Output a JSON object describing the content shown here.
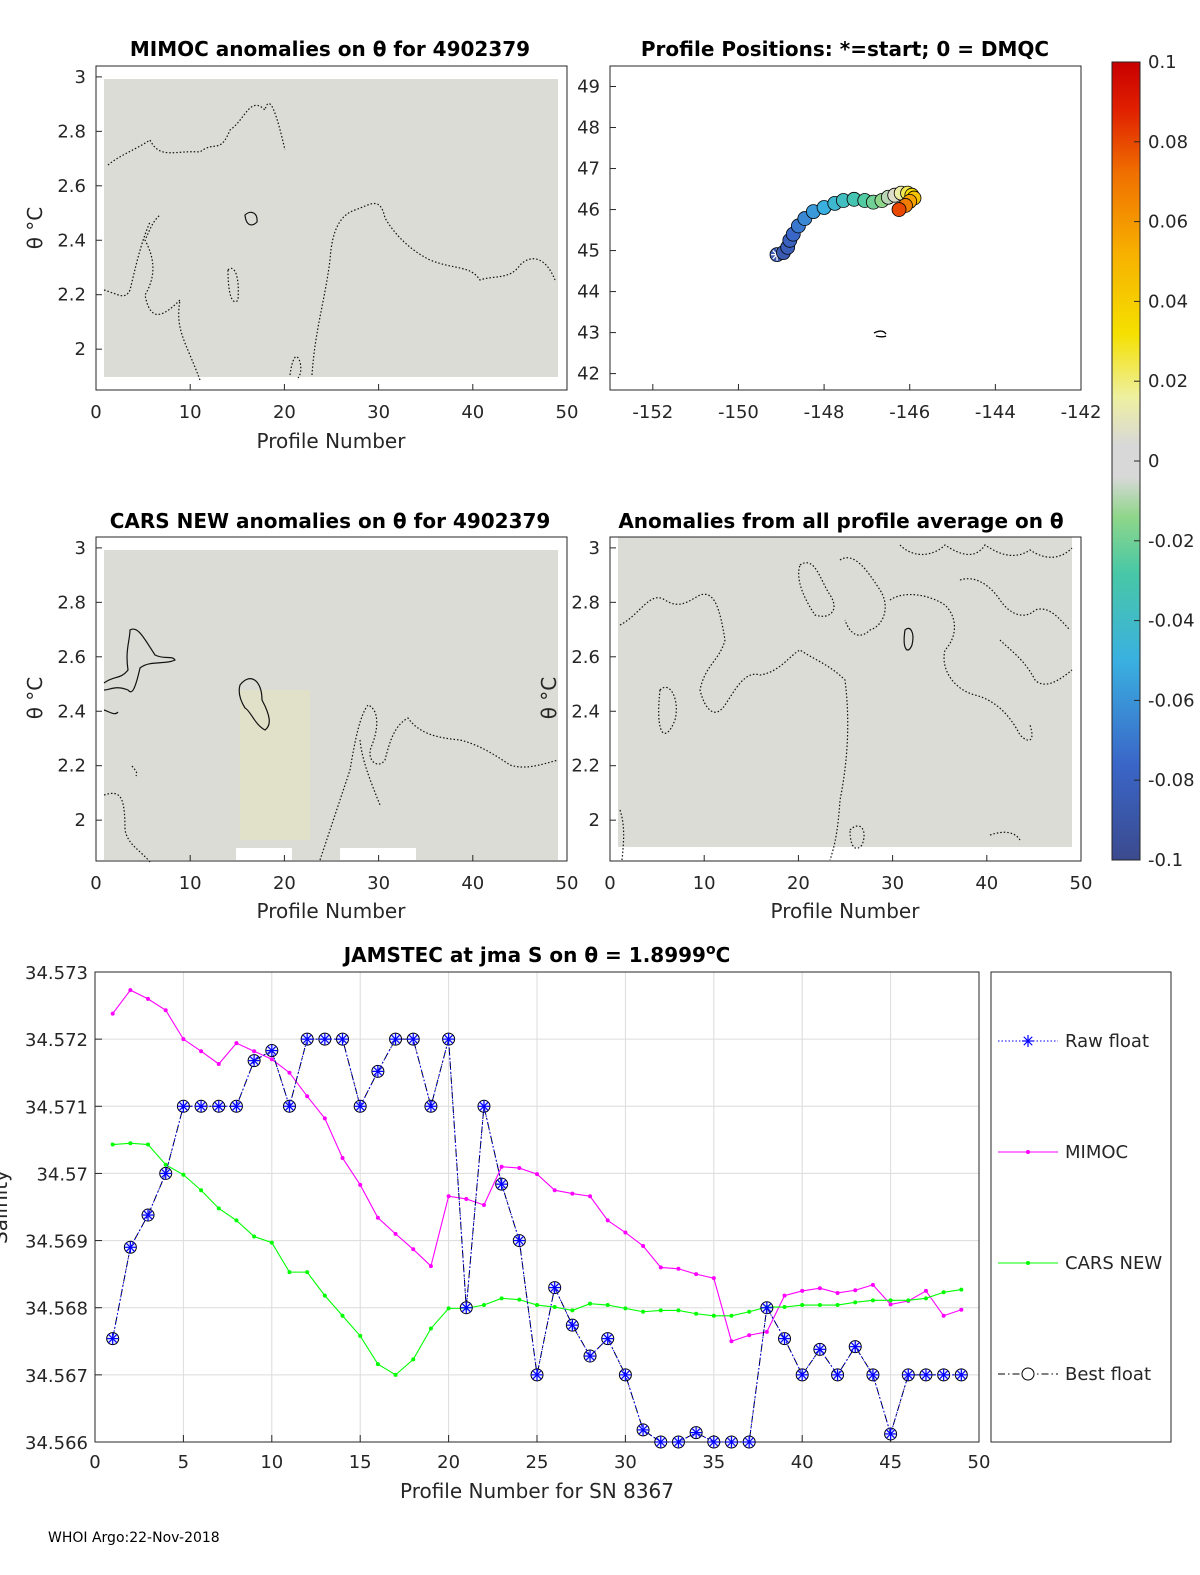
{
  "footer": "WHOI Argo:22-Nov-2018",
  "panels": {
    "mimoc": {
      "title": "MIMOC anomalies on θ  for 4902379",
      "xlabel": "Profile Number",
      "ylabel": "θ °C",
      "xticks": [
        0,
        10,
        20,
        30,
        40,
        50
      ],
      "yticks": [
        2,
        2.2,
        2.4,
        2.6,
        2.8,
        3
      ]
    },
    "positions": {
      "title": "Profile Positions: *=start; 0 = DMQC",
      "xticks": [
        -152,
        -150,
        -148,
        -146,
        -144,
        -142
      ],
      "yticks": [
        42,
        43,
        44,
        45,
        46,
        47,
        48,
        49
      ]
    },
    "cars": {
      "title": "CARS NEW anomalies on θ for 4902379",
      "xlabel": "Profile Number",
      "ylabel": "θ °C",
      "xticks": [
        0,
        10,
        20,
        30,
        40,
        50
      ],
      "yticks": [
        2,
        2.2,
        2.4,
        2.6,
        2.8,
        3
      ]
    },
    "allavg": {
      "title": "Anomalies from all profile average on θ",
      "xlabel": "Profile Number",
      "ylabel": "θ °C",
      "xticks": [
        0,
        10,
        20,
        30,
        40,
        50
      ],
      "yticks": [
        2,
        2.2,
        2.4,
        2.6,
        2.8,
        3
      ]
    },
    "colorbar": {
      "ticks": [
        "0.1",
        "0.08",
        "0.06",
        "0.04",
        "0.02",
        "0",
        "-0.02",
        "-0.04",
        "-0.06",
        "-0.08",
        "-0.1"
      ]
    }
  },
  "chart_data": [
    {
      "type": "line",
      "title": "JAMSTEC at jma S on θ = 1.8999°C",
      "title_parts": [
        "JAMSTEC at jma S on θ = 1.8999",
        "o",
        "C"
      ],
      "xlabel": "Profile Number for SN 8367",
      "ylabel": "Salinity",
      "xlim": [
        0,
        50
      ],
      "ylim": [
        34.566,
        34.573
      ],
      "xticks": [
        0,
        5,
        10,
        15,
        20,
        25,
        30,
        35,
        40,
        45,
        50
      ],
      "yticks": [
        "34.566",
        "34.567",
        "34.568",
        "34.569",
        "34.57",
        "34.571",
        "34.572",
        "34.573"
      ],
      "grid": true,
      "legend_position": "right",
      "x": [
        1,
        2,
        3,
        4,
        5,
        6,
        7,
        8,
        9,
        10,
        11,
        12,
        13,
        14,
        15,
        16,
        17,
        18,
        19,
        20,
        21,
        22,
        23,
        24,
        25,
        26,
        27,
        28,
        29,
        30,
        31,
        32,
        33,
        34,
        35,
        36,
        37,
        38,
        39,
        40,
        41,
        42,
        43,
        44,
        45,
        46,
        47,
        48,
        49
      ],
      "series": [
        {
          "name": "Raw float",
          "color": "#0000ff",
          "style": "dotted-star",
          "values": [
            34.56754,
            34.5689,
            34.56938,
            34.57,
            34.571,
            34.571,
            34.571,
            34.571,
            34.57168,
            34.57183,
            34.571,
            34.572,
            34.572,
            34.572,
            34.571,
            34.57152,
            34.572,
            34.572,
            34.571,
            34.572,
            34.568,
            34.571,
            34.56984,
            34.569,
            34.567,
            34.5683,
            34.56774,
            34.56728,
            34.56754,
            34.567,
            34.56618,
            34.566,
            34.566,
            34.56614,
            34.566,
            34.566,
            34.566,
            34.568,
            34.56754,
            34.567,
            34.56738,
            34.567,
            34.56742,
            34.567,
            34.56612,
            34.567,
            34.567,
            34.567,
            34.567
          ]
        },
        {
          "name": "MIMOC",
          "color": "#ff00ff",
          "style": "line-dot",
          "values": [
            34.57238,
            34.57273,
            34.5726,
            34.57243,
            34.572,
            34.57182,
            34.57163,
            34.57194,
            34.57182,
            34.5717,
            34.5715,
            34.57115,
            34.57082,
            34.57023,
            34.56983,
            34.56934,
            34.5691,
            34.56887,
            34.56862,
            34.56966,
            34.56962,
            34.56953,
            34.5701,
            34.57008,
            34.56999,
            34.56975,
            34.5697,
            34.56966,
            34.5693,
            34.56912,
            34.56892,
            34.5686,
            34.56858,
            34.5685,
            34.56844,
            34.5675,
            34.56759,
            34.56764,
            34.56818,
            34.56825,
            34.56829,
            34.56822,
            34.56826,
            34.56834,
            34.56805,
            34.5681,
            34.56825,
            34.56788,
            34.56797
          ]
        },
        {
          "name": "CARS NEW",
          "color": "#00ff00",
          "style": "line-dot",
          "values": [
            34.57043,
            34.57045,
            34.57043,
            34.57013,
            34.56998,
            34.56975,
            34.56948,
            34.5693,
            34.56906,
            34.56897,
            34.56853,
            34.56853,
            34.56818,
            34.56788,
            34.56758,
            34.56716,
            34.567,
            34.56723,
            34.56769,
            34.56799,
            34.56799,
            34.56804,
            34.56814,
            34.56812,
            34.56804,
            34.56801,
            34.56796,
            34.56806,
            34.56804,
            34.56799,
            34.56794,
            34.56796,
            34.56796,
            34.56791,
            34.56788,
            34.56788,
            34.56794,
            34.56801,
            34.56801,
            34.56804,
            34.56804,
            34.56804,
            34.56808,
            34.56811,
            34.56811,
            34.56811,
            34.56814,
            34.56823,
            34.56827
          ]
        },
        {
          "name": "Best float",
          "color": "#000000",
          "style": "dashdot-circle",
          "values": [
            34.56754,
            34.5689,
            34.56938,
            34.57,
            34.571,
            34.571,
            34.571,
            34.571,
            34.57168,
            34.57183,
            34.571,
            34.572,
            34.572,
            34.572,
            34.571,
            34.57152,
            34.572,
            34.572,
            34.571,
            34.572,
            34.568,
            34.571,
            34.56984,
            34.569,
            34.567,
            34.5683,
            34.56774,
            34.56728,
            34.56754,
            34.567,
            34.56618,
            34.566,
            34.566,
            34.56614,
            34.566,
            34.566,
            34.566,
            34.568,
            34.56754,
            34.567,
            34.56738,
            34.567,
            34.56742,
            34.567,
            34.56612,
            34.567,
            34.567,
            34.567,
            34.567
          ]
        }
      ]
    },
    {
      "type": "scatter",
      "title": "Profile Positions: *=start; 0 = DMQC",
      "xlim": [
        -153,
        -142
      ],
      "ylim": [
        41.6,
        49.5
      ],
      "colorbar_range": [
        -0.1,
        0.1
      ],
      "points": [
        {
          "lon": -149.1,
          "lat": 44.9,
          "value": -0.086,
          "start": true
        },
        {
          "lon": -148.95,
          "lat": 44.95,
          "value": -0.086
        },
        {
          "lon": -148.85,
          "lat": 45.08,
          "value": -0.083
        },
        {
          "lon": -148.8,
          "lat": 45.25,
          "value": -0.08
        },
        {
          "lon": -148.72,
          "lat": 45.4,
          "value": -0.076
        },
        {
          "lon": -148.6,
          "lat": 45.6,
          "value": -0.07
        },
        {
          "lon": -148.45,
          "lat": 45.78,
          "value": -0.064
        },
        {
          "lon": -148.25,
          "lat": 45.95,
          "value": -0.058
        },
        {
          "lon": -148.0,
          "lat": 46.05,
          "value": -0.05
        },
        {
          "lon": -147.75,
          "lat": 46.15,
          "value": -0.044
        },
        {
          "lon": -147.55,
          "lat": 46.22,
          "value": -0.038
        },
        {
          "lon": -147.3,
          "lat": 46.25,
          "value": -0.032
        },
        {
          "lon": -147.05,
          "lat": 46.22,
          "value": -0.026
        },
        {
          "lon": -146.85,
          "lat": 46.18,
          "value": -0.02
        },
        {
          "lon": -146.65,
          "lat": 46.22,
          "value": -0.014
        },
        {
          "lon": -146.5,
          "lat": 46.3,
          "value": -0.006
        },
        {
          "lon": -146.35,
          "lat": 46.35,
          "value": 0.004
        },
        {
          "lon": -146.2,
          "lat": 46.4,
          "value": 0.014
        },
        {
          "lon": -146.05,
          "lat": 46.4,
          "value": 0.024
        },
        {
          "lon": -145.95,
          "lat": 46.35,
          "value": 0.034
        },
        {
          "lon": -145.9,
          "lat": 46.28,
          "value": 0.044
        },
        {
          "lon": -146.0,
          "lat": 46.2,
          "value": 0.056
        },
        {
          "lon": -146.1,
          "lat": 46.1,
          "value": 0.068
        },
        {
          "lon": -146.25,
          "lat": 46.0,
          "value": 0.08
        }
      ]
    }
  ]
}
